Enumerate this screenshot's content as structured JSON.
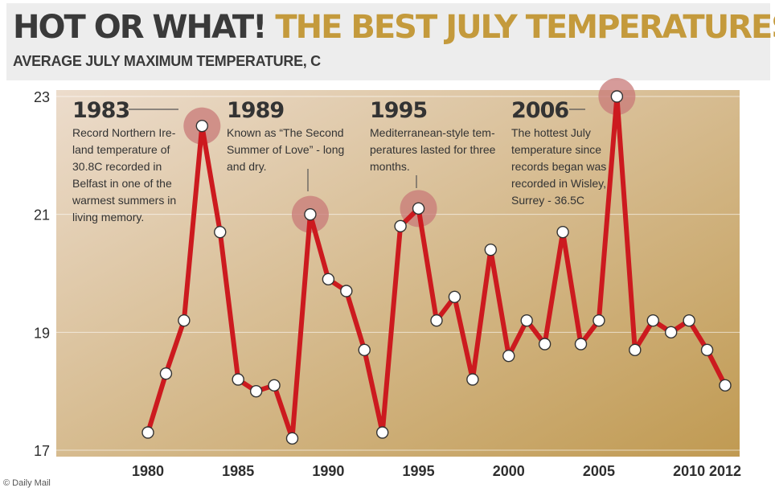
{
  "header": {
    "title_part1": "HOT OR WHAT!",
    "title_part2": "THE BEST JULY TEMPERATURES",
    "subtitle": "AVERAGE JULY MAXIMUM TEMPERATURE, C"
  },
  "watermark": "© Daily Mail",
  "colors": {
    "line": "#cc1a1f",
    "marker_fill": "#ffffff",
    "highlight": "#c87a78",
    "bg_light": "#ecdccc",
    "bg_dark": "#c09a52"
  },
  "chart_data": {
    "type": "line",
    "title": "",
    "xlabel": "",
    "ylabel": "AVERAGE JULY MAXIMUM TEMPERATURE, C",
    "xlim": [
      1980,
      2012
    ],
    "ylim": [
      17,
      23
    ],
    "x_ticks": [
      "1980",
      "1985",
      "1990",
      "1995",
      "2000",
      "2005",
      "2010",
      "2012"
    ],
    "y_ticks": [
      "23",
      "21",
      "19",
      "17"
    ],
    "grid": "horizontal",
    "series": [
      {
        "x": [
          1980,
          1981,
          1982,
          1983,
          1984,
          1985,
          1986,
          1987,
          1988,
          1989,
          1990,
          1991,
          1992,
          1993,
          1994,
          1995,
          1996,
          1997,
          1998,
          1999,
          2000,
          2001,
          2002,
          2003,
          2004,
          2005,
          2006,
          2007,
          2008,
          2009,
          2010,
          2011,
          2012
        ],
        "y": [
          17.3,
          18.3,
          19.2,
          22.5,
          20.7,
          18.2,
          18.0,
          18.1,
          17.2,
          21.0,
          19.9,
          19.7,
          18.7,
          17.3,
          20.8,
          21.1,
          19.2,
          19.6,
          18.2,
          20.4,
          18.6,
          19.2,
          18.8,
          20.7,
          18.8,
          19.2,
          23.0,
          18.7,
          19.2,
          19.0,
          19.2,
          18.7,
          18.1
        ]
      }
    ],
    "annotations": [
      {
        "x": 1983,
        "year": "1983",
        "lines": [
          "Record Northern Ire-",
          "land temperature of",
          "30.8C recorded in",
          "Belfast in one of the",
          "warmest summers in",
          "living memory."
        ]
      },
      {
        "x": 1989,
        "year": "1989",
        "lines": [
          "Known as “The Second",
          "Summer of Love” - long",
          "and dry."
        ]
      },
      {
        "x": 1995,
        "year": "1995",
        "lines": [
          "Mediterranean-style tem-",
          "peratures lasted for three",
          "months."
        ]
      },
      {
        "x": 2006,
        "year": "2006",
        "lines": [
          "The hottest July",
          "temperature since",
          "records began was",
          "recorded in Wisley,",
          "Surrey - 36.5C"
        ]
      }
    ]
  }
}
